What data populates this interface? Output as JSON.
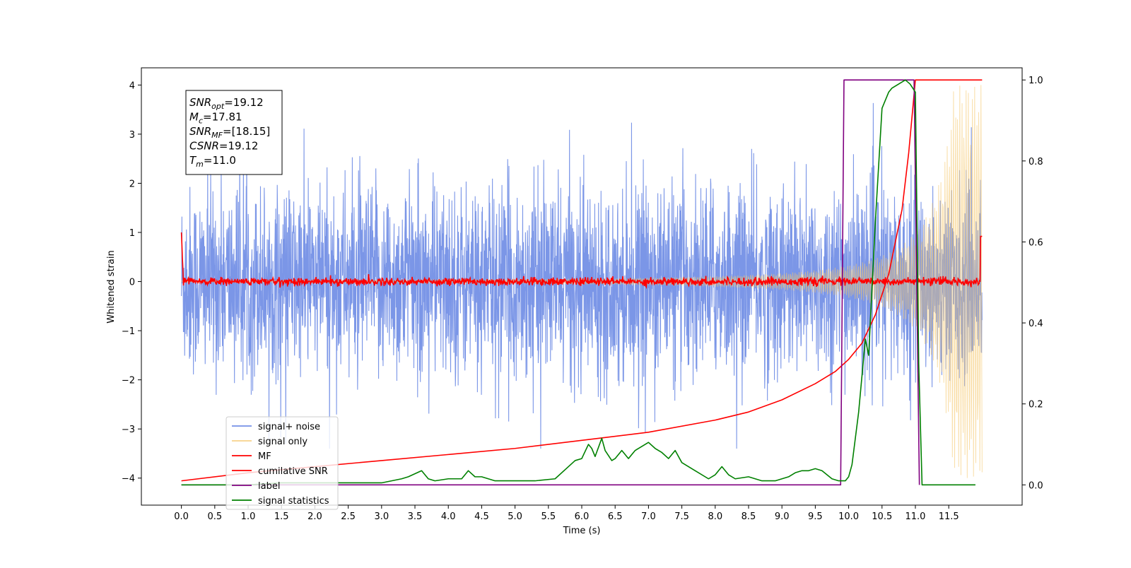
{
  "chart_data": {
    "type": "line",
    "xlabel": "Time (s)",
    "ylabel": "Whitened strain",
    "xlim": [
      -0.6,
      12.6
    ],
    "ylim": [
      -4.55,
      4.35
    ],
    "ylim_right": [
      -0.05,
      1.03
    ],
    "x_ticks": [
      "0.0",
      "0.5",
      "1.0",
      "1.5",
      "2.0",
      "2.5",
      "3.0",
      "3.5",
      "4.0",
      "4.5",
      "5.0",
      "5.5",
      "6.0",
      "6.5",
      "7.0",
      "7.5",
      "8.0",
      "8.5",
      "9.0",
      "9.5",
      "10.0",
      "10.5",
      "11.0",
      "11.5"
    ],
    "y_ticks": [
      {
        "value": 4,
        "label": "4"
      },
      {
        "value": 3,
        "label": "3"
      },
      {
        "value": 2,
        "label": "2"
      },
      {
        "value": 1,
        "label": "1"
      },
      {
        "value": 0,
        "label": "0"
      },
      {
        "value": -1,
        "label": "−1"
      },
      {
        "value": -2,
        "label": "−2"
      },
      {
        "value": -3,
        "label": "−3"
      },
      {
        "value": -4,
        "label": "−4"
      }
    ],
    "y2_ticks": [
      {
        "value": 0.0,
        "label": "0.0"
      },
      {
        "value": 0.2,
        "label": "0.2"
      },
      {
        "value": 0.4,
        "label": "0.4"
      },
      {
        "value": 0.6,
        "label": "0.6"
      },
      {
        "value": 0.8,
        "label": "0.8"
      },
      {
        "value": 1.0,
        "label": "1.0"
      }
    ],
    "info_box": [
      {
        "base": "SNR",
        "sub": "opt",
        "value": "=19.12"
      },
      {
        "base": "M",
        "sub": "c",
        "value": "=17.81"
      },
      {
        "base": "SNR",
        "sub": "MF",
        "value": "=[18.15]"
      },
      {
        "base": "CSNR",
        "sub": "",
        "value": "=19.12"
      },
      {
        "base": "T",
        "sub": "m",
        "value": "=11.0"
      }
    ],
    "legend_position": "lower-left",
    "series": [
      {
        "name": "signal+ noise",
        "color": "#7490e6",
        "axis": "left",
        "t_range": [
          0.0,
          12.0
        ],
        "noise_std": 0.95,
        "mean": 0.0,
        "max": 3.95,
        "min": -3.4
      },
      {
        "name": "signal only",
        "color": "#f5c86e",
        "axis": "left",
        "t_range": [
          0.0,
          12.0
        ],
        "merger_time": 11.0,
        "peak_amplitude": 4.0
      },
      {
        "name": "MF",
        "color": "#ff0000",
        "axis": "left",
        "t_range": [
          0.0,
          12.0
        ],
        "start_value": 1.0,
        "end_value": 0.92,
        "mean": 0.0,
        "noise_std": 0.04
      },
      {
        "name": "cumilative SNR",
        "color": "#ff0000",
        "axis": "right",
        "x": [
          0.0,
          1.0,
          2.0,
          3.0,
          4.0,
          5.0,
          6.0,
          7.0,
          8.0,
          8.5,
          9.0,
          9.5,
          9.8,
          10.0,
          10.2,
          10.4,
          10.6,
          10.8,
          10.9,
          11.0,
          11.5,
          12.0
        ],
        "y": [
          0.01,
          0.03,
          0.045,
          0.06,
          0.075,
          0.09,
          0.11,
          0.13,
          0.16,
          0.18,
          0.21,
          0.25,
          0.28,
          0.31,
          0.35,
          0.42,
          0.52,
          0.68,
          0.82,
          1.0,
          1.0,
          1.0
        ]
      },
      {
        "name": "label",
        "color": "#800080",
        "axis": "right",
        "x": [
          0.0,
          9.88,
          9.93,
          10.98,
          11.06
        ],
        "y": [
          0.0,
          0.0,
          1.0,
          1.0,
          0.0
        ]
      },
      {
        "name": "signal statistics",
        "color": "#008000",
        "axis": "right",
        "x": [
          0.0,
          0.5,
          1.0,
          1.5,
          2.0,
          2.5,
          3.0,
          3.3,
          3.4,
          3.6,
          3.7,
          3.8,
          4.0,
          4.2,
          4.3,
          4.4,
          4.5,
          4.6,
          4.7,
          5.0,
          5.3,
          5.6,
          5.8,
          5.9,
          6.0,
          6.1,
          6.15,
          6.2,
          6.3,
          6.35,
          6.45,
          6.5,
          6.6,
          6.7,
          6.8,
          6.9,
          7.0,
          7.1,
          7.2,
          7.3,
          7.4,
          7.5,
          7.7,
          7.9,
          8.0,
          8.1,
          8.2,
          8.3,
          8.5,
          8.7,
          8.9,
          9.0,
          9.1,
          9.2,
          9.3,
          9.4,
          9.5,
          9.6,
          9.75,
          9.85,
          9.95,
          10.0,
          10.05,
          10.15,
          10.2,
          10.25,
          10.3,
          10.4,
          10.5,
          10.6,
          10.65,
          10.75,
          10.85,
          10.92,
          11.0,
          11.05,
          11.1,
          11.2,
          11.5,
          11.9
        ],
        "y": [
          0.0,
          0.0,
          0.0,
          0.005,
          0.005,
          0.005,
          0.005,
          0.015,
          0.02,
          0.035,
          0.015,
          0.01,
          0.015,
          0.015,
          0.035,
          0.02,
          0.02,
          0.015,
          0.01,
          0.01,
          0.01,
          0.015,
          0.045,
          0.06,
          0.065,
          0.1,
          0.09,
          0.07,
          0.115,
          0.085,
          0.06,
          0.065,
          0.085,
          0.065,
          0.085,
          0.095,
          0.105,
          0.09,
          0.08,
          0.065,
          0.085,
          0.055,
          0.035,
          0.015,
          0.025,
          0.045,
          0.025,
          0.015,
          0.02,
          0.01,
          0.01,
          0.015,
          0.02,
          0.03,
          0.035,
          0.035,
          0.04,
          0.035,
          0.015,
          0.01,
          0.01,
          0.02,
          0.05,
          0.18,
          0.27,
          0.36,
          0.32,
          0.65,
          0.93,
          0.97,
          0.98,
          0.99,
          1.0,
          0.99,
          0.97,
          0.3,
          0.0,
          0.0,
          0.0,
          0.0
        ]
      }
    ]
  }
}
